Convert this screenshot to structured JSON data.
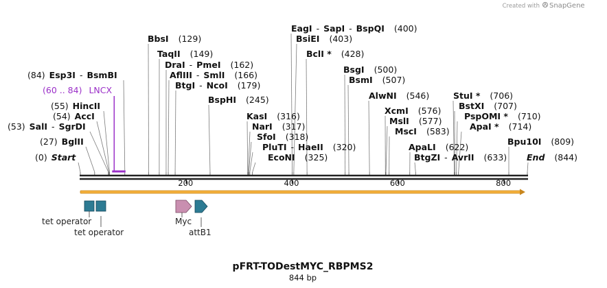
{
  "credit": {
    "prefix": "Created with",
    "brand": "SnapGene"
  },
  "plasmid": {
    "name": "pFRT-TODestMYC_RBPMS2",
    "length_label": "844 bp",
    "length": 844
  },
  "ruler": {
    "ticks": [
      200,
      400,
      600,
      800
    ]
  },
  "sites": [
    {
      "names": [
        "Start"
      ],
      "paren": "(0)",
      "pos": 0,
      "italic": true
    },
    {
      "names": [
        "BglII"
      ],
      "paren": "(27)",
      "pos": 27
    },
    {
      "names": [
        "SalI",
        "SgrDI"
      ],
      "paren": "(53)",
      "pos": 53
    },
    {
      "names": [
        "AccI"
      ],
      "paren": "(54)",
      "pos": 54
    },
    {
      "names": [
        "HincII"
      ],
      "paren": "(55)",
      "pos": 55
    },
    {
      "names": [
        "Esp3I",
        "BsmBI"
      ],
      "paren": "(84)",
      "pos": 84
    },
    {
      "names": [
        "BbsI"
      ],
      "paren": "(129)",
      "pos": 129
    },
    {
      "names": [
        "TaqII"
      ],
      "paren": "(149)",
      "pos": 149
    },
    {
      "names": [
        "DraI",
        "PmeI"
      ],
      "paren": "(162)",
      "pos": 162
    },
    {
      "names": [
        "AflIII",
        "SmlI"
      ],
      "paren": "(166)",
      "pos": 166
    },
    {
      "names": [
        "BtgI",
        "NcoI"
      ],
      "paren": "(179)",
      "pos": 179
    },
    {
      "names": [
        "BspHI"
      ],
      "paren": "(245)",
      "pos": 245
    },
    {
      "names": [
        "KasI"
      ],
      "paren": "(316)",
      "pos": 316
    },
    {
      "names": [
        "NarI"
      ],
      "paren": "(317)",
      "pos": 317
    },
    {
      "names": [
        "SfoI"
      ],
      "paren": "(318)",
      "pos": 318
    },
    {
      "names": [
        "PluTI",
        "HaeII"
      ],
      "paren": "(320)",
      "pos": 320
    },
    {
      "names": [
        "EcoNI"
      ],
      "paren": "(325)",
      "pos": 325
    },
    {
      "names": [
        "EagI",
        "SapI",
        "BspQI"
      ],
      "paren": "(400)",
      "pos": 400
    },
    {
      "names": [
        "BsiEI"
      ],
      "paren": "(403)",
      "pos": 403
    },
    {
      "names": [
        "BclI *"
      ],
      "paren": "(428)",
      "pos": 428
    },
    {
      "names": [
        "BsgI"
      ],
      "paren": "(500)",
      "pos": 500
    },
    {
      "names": [
        "BsmI"
      ],
      "paren": "(507)",
      "pos": 507
    },
    {
      "names": [
        "AlwNI"
      ],
      "paren": "(546)",
      "pos": 546
    },
    {
      "names": [
        "XcmI"
      ],
      "paren": "(576)",
      "pos": 576
    },
    {
      "names": [
        "MslI"
      ],
      "paren": "(577)",
      "pos": 577
    },
    {
      "names": [
        "MscI"
      ],
      "paren": "(583)",
      "pos": 583
    },
    {
      "names": [
        "ApaLI"
      ],
      "paren": "(622)",
      "pos": 622
    },
    {
      "names": [
        "BtgZI",
        "AvrII"
      ],
      "paren": "(633)",
      "pos": 633
    },
    {
      "names": [
        "StuI *"
      ],
      "paren": "(706)",
      "pos": 706
    },
    {
      "names": [
        "BstXI"
      ],
      "paren": "(707)",
      "pos": 707
    },
    {
      "names": [
        "PspOMI *"
      ],
      "paren": "(710)",
      "pos": 710
    },
    {
      "names": [
        "ApaI *"
      ],
      "paren": "(714)",
      "pos": 714
    },
    {
      "names": [
        "Bpu10I"
      ],
      "paren": "(809)",
      "pos": 809
    },
    {
      "names": [
        "End"
      ],
      "paren": "(844)",
      "pos": 844,
      "italic": true
    }
  ],
  "primer": {
    "range": "(60 .. 84)",
    "name": "LNCX",
    "start": 60,
    "end": 84,
    "color": "#9b30c8"
  },
  "features": [
    {
      "label": "tet operator",
      "color": "#2d7b93"
    },
    {
      "label": "tet operator",
      "color": "#2d7b93"
    },
    {
      "label": "Myc",
      "color": "#c98fb0"
    },
    {
      "label": "attB1",
      "color": "#2d7b93"
    }
  ],
  "orf": {
    "color": "#f5b13d"
  }
}
